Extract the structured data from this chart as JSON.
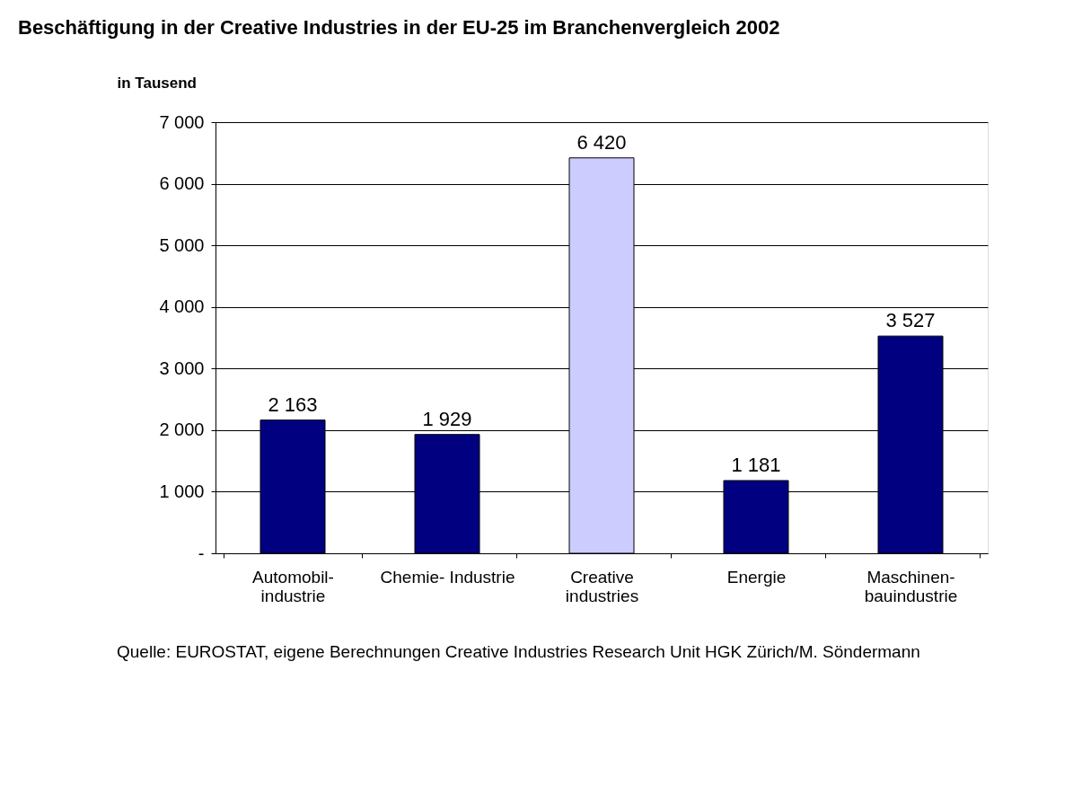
{
  "chart_data": {
    "type": "bar",
    "title": "Beschäftigung in der Creative Industries in der EU-25 im Branchenvergleich 2002",
    "ylabel": "in Tausend",
    "categories": [
      "Automobil-\nindustrie",
      "Chemie- Industrie",
      "Creative\nindustries",
      "Energie",
      "Maschinen-\nbauindustrie"
    ],
    "values": [
      2163,
      1929,
      6420,
      1181,
      3527
    ],
    "colors": [
      "#000080",
      "#000080",
      "#ccccff",
      "#000080",
      "#000080"
    ],
    "value_labels": [
      "2 163",
      "1 929",
      "6 420",
      "1 181",
      "3 527"
    ],
    "ylim": [
      0,
      7000
    ],
    "yticks": [
      {
        "value": 0,
        "label": "-"
      },
      {
        "value": 1000,
        "label": "1 000"
      },
      {
        "value": 2000,
        "label": "2 000"
      },
      {
        "value": 3000,
        "label": "3 000"
      },
      {
        "value": 4000,
        "label": "4 000"
      },
      {
        "value": 5000,
        "label": "5 000"
      },
      {
        "value": 6000,
        "label": "6 000"
      },
      {
        "value": 7000,
        "label": "7 000"
      }
    ],
    "grid": "y",
    "annotations": [
      "Quelle: EUROSTAT, eigene Berechnungen Creative Industries Research Unit HGK Zürich/M. Söndermann"
    ]
  }
}
